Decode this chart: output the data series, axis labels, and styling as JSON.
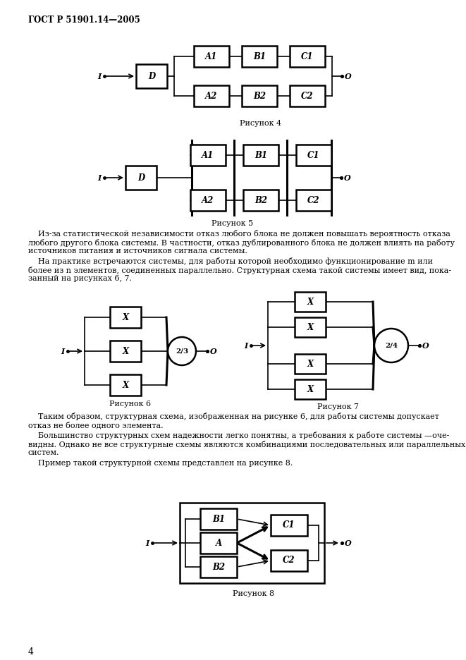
{
  "title": "ГОСТ Р 51901.14—2005",
  "background": "#ffffff",
  "fig4_caption": "Рисунок 4",
  "fig5_caption": "Рисунок 5",
  "fig6_caption": "Рисунок 6",
  "fig7_caption": "Рисунок 7",
  "fig8_caption": "Рисунок 8",
  "page_number": "4",
  "text_para1_line1": "    Из-за статистической независимости отказ любого блока не должен повышать вероятность отказа",
  "text_para1_line2": "любого другого блока системы. В частности, отказ дублированного блока не должен влиять на работу",
  "text_para1_line3": "источников питания и источников сигнала системы.",
  "text_para2_line1": "    На практике встречаются системы, для работы которой необходимо функционирование m или",
  "text_para2_line2": "более из n элементов, соединенных параллельно. Структурная схема такой системы имеет вид, пока-",
  "text_para2_line3": "занный на рисунках 6, 7.",
  "text_para3_line1": "    Таким образом, структурная схема, изображенная на рисунке 6, для работы системы допускает",
  "text_para3_line2": "отказ не более одного элемента.",
  "text_para4_line1": "    Большинство структурных схем надежности легко понятны, а требования к работе системы —оче-",
  "text_para4_line2": "видны. Однако не все структурные схемы являются комбинациями последовательных или параллельных",
  "text_para4_line3": "систем.",
  "text_para5": "    Пример такой структурной схемы представлен на рисунке 8."
}
